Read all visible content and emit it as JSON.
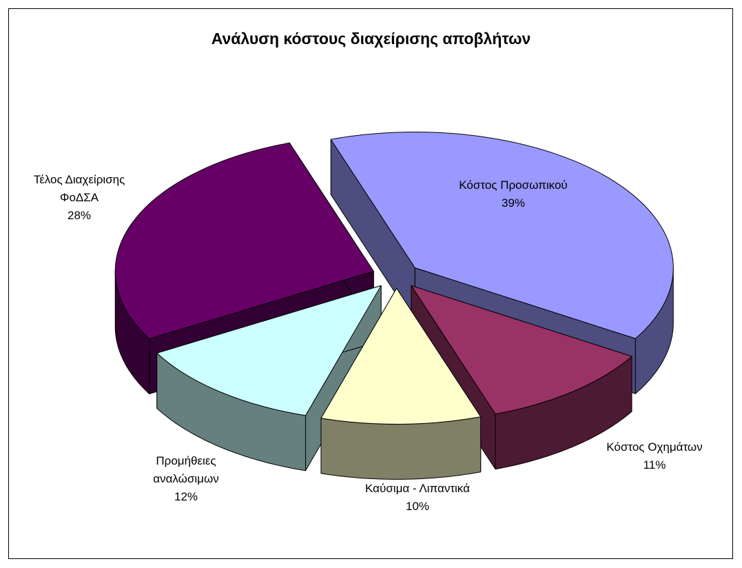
{
  "chart_data": {
    "type": "pie3d",
    "title": "Ανάλυση κόστους διαχείρισης αποβλήτων",
    "categories": [
      "Κόστος Προσωπικού",
      "Κόστος Οχημάτων",
      "Καύσιμα - Λιπαντικά",
      "Προμήθειες αναλώσιμων",
      "Τέλος Διαχείρισης ΦοΔΣΑ"
    ],
    "values": [
      39,
      11,
      10,
      12,
      28
    ],
    "value_labels": [
      "39%",
      "11%",
      "10%",
      "12%",
      "28%"
    ],
    "colors": [
      "#9999ff",
      "#993366",
      "#ffffcc",
      "#ccffff",
      "#660066"
    ],
    "exploded": true
  }
}
